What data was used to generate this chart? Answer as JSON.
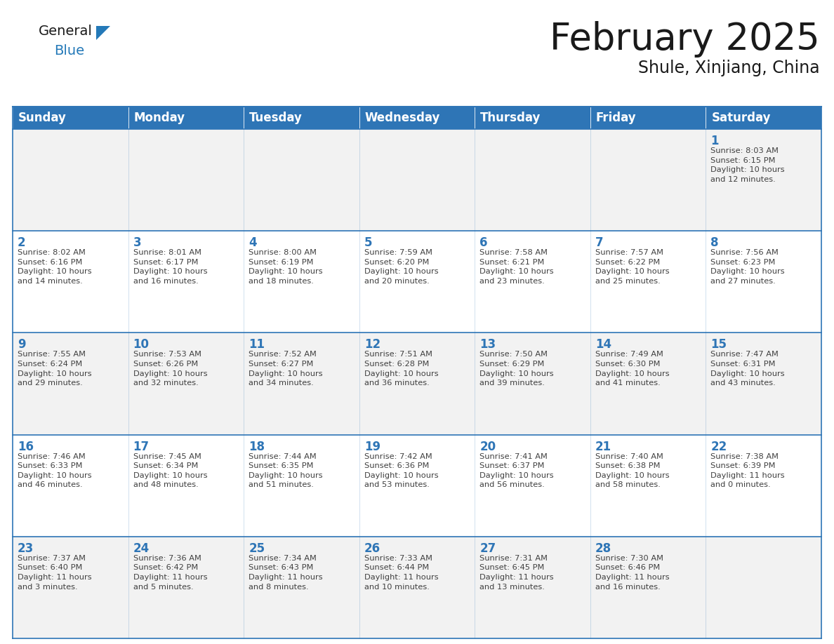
{
  "title": "February 2025",
  "subtitle": "Shule, Xinjiang, China",
  "header_bg": "#2E75B6",
  "header_text_color": "#FFFFFF",
  "cell_bg": "#FFFFFF",
  "alt_row_bg": "#F2F2F2",
  "border_color": "#2E75B6",
  "text_color": "#404040",
  "day_number_color": "#2E75B6",
  "days_of_week": [
    "Sunday",
    "Monday",
    "Tuesday",
    "Wednesday",
    "Thursday",
    "Friday",
    "Saturday"
  ],
  "weeks": [
    [
      {
        "day": "",
        "info": ""
      },
      {
        "day": "",
        "info": ""
      },
      {
        "day": "",
        "info": ""
      },
      {
        "day": "",
        "info": ""
      },
      {
        "day": "",
        "info": ""
      },
      {
        "day": "",
        "info": ""
      },
      {
        "day": "1",
        "info": "Sunrise: 8:03 AM\nSunset: 6:15 PM\nDaylight: 10 hours\nand 12 minutes."
      }
    ],
    [
      {
        "day": "2",
        "info": "Sunrise: 8:02 AM\nSunset: 6:16 PM\nDaylight: 10 hours\nand 14 minutes."
      },
      {
        "day": "3",
        "info": "Sunrise: 8:01 AM\nSunset: 6:17 PM\nDaylight: 10 hours\nand 16 minutes."
      },
      {
        "day": "4",
        "info": "Sunrise: 8:00 AM\nSunset: 6:19 PM\nDaylight: 10 hours\nand 18 minutes."
      },
      {
        "day": "5",
        "info": "Sunrise: 7:59 AM\nSunset: 6:20 PM\nDaylight: 10 hours\nand 20 minutes."
      },
      {
        "day": "6",
        "info": "Sunrise: 7:58 AM\nSunset: 6:21 PM\nDaylight: 10 hours\nand 23 minutes."
      },
      {
        "day": "7",
        "info": "Sunrise: 7:57 AM\nSunset: 6:22 PM\nDaylight: 10 hours\nand 25 minutes."
      },
      {
        "day": "8",
        "info": "Sunrise: 7:56 AM\nSunset: 6:23 PM\nDaylight: 10 hours\nand 27 minutes."
      }
    ],
    [
      {
        "day": "9",
        "info": "Sunrise: 7:55 AM\nSunset: 6:24 PM\nDaylight: 10 hours\nand 29 minutes."
      },
      {
        "day": "10",
        "info": "Sunrise: 7:53 AM\nSunset: 6:26 PM\nDaylight: 10 hours\nand 32 minutes."
      },
      {
        "day": "11",
        "info": "Sunrise: 7:52 AM\nSunset: 6:27 PM\nDaylight: 10 hours\nand 34 minutes."
      },
      {
        "day": "12",
        "info": "Sunrise: 7:51 AM\nSunset: 6:28 PM\nDaylight: 10 hours\nand 36 minutes."
      },
      {
        "day": "13",
        "info": "Sunrise: 7:50 AM\nSunset: 6:29 PM\nDaylight: 10 hours\nand 39 minutes."
      },
      {
        "day": "14",
        "info": "Sunrise: 7:49 AM\nSunset: 6:30 PM\nDaylight: 10 hours\nand 41 minutes."
      },
      {
        "day": "15",
        "info": "Sunrise: 7:47 AM\nSunset: 6:31 PM\nDaylight: 10 hours\nand 43 minutes."
      }
    ],
    [
      {
        "day": "16",
        "info": "Sunrise: 7:46 AM\nSunset: 6:33 PM\nDaylight: 10 hours\nand 46 minutes."
      },
      {
        "day": "17",
        "info": "Sunrise: 7:45 AM\nSunset: 6:34 PM\nDaylight: 10 hours\nand 48 minutes."
      },
      {
        "day": "18",
        "info": "Sunrise: 7:44 AM\nSunset: 6:35 PM\nDaylight: 10 hours\nand 51 minutes."
      },
      {
        "day": "19",
        "info": "Sunrise: 7:42 AM\nSunset: 6:36 PM\nDaylight: 10 hours\nand 53 minutes."
      },
      {
        "day": "20",
        "info": "Sunrise: 7:41 AM\nSunset: 6:37 PM\nDaylight: 10 hours\nand 56 minutes."
      },
      {
        "day": "21",
        "info": "Sunrise: 7:40 AM\nSunset: 6:38 PM\nDaylight: 10 hours\nand 58 minutes."
      },
      {
        "day": "22",
        "info": "Sunrise: 7:38 AM\nSunset: 6:39 PM\nDaylight: 11 hours\nand 0 minutes."
      }
    ],
    [
      {
        "day": "23",
        "info": "Sunrise: 7:37 AM\nSunset: 6:40 PM\nDaylight: 11 hours\nand 3 minutes."
      },
      {
        "day": "24",
        "info": "Sunrise: 7:36 AM\nSunset: 6:42 PM\nDaylight: 11 hours\nand 5 minutes."
      },
      {
        "day": "25",
        "info": "Sunrise: 7:34 AM\nSunset: 6:43 PM\nDaylight: 11 hours\nand 8 minutes."
      },
      {
        "day": "26",
        "info": "Sunrise: 7:33 AM\nSunset: 6:44 PM\nDaylight: 11 hours\nand 10 minutes."
      },
      {
        "day": "27",
        "info": "Sunrise: 7:31 AM\nSunset: 6:45 PM\nDaylight: 11 hours\nand 13 minutes."
      },
      {
        "day": "28",
        "info": "Sunrise: 7:30 AM\nSunset: 6:46 PM\nDaylight: 11 hours\nand 16 minutes."
      },
      {
        "day": "",
        "info": ""
      }
    ]
  ],
  "logo_general_color": "#1a1a1a",
  "logo_blue_color": "#2479B8",
  "title_fontsize": 38,
  "subtitle_fontsize": 17,
  "header_fontsize": 12,
  "day_number_fontsize": 12,
  "cell_text_fontsize": 8.2
}
